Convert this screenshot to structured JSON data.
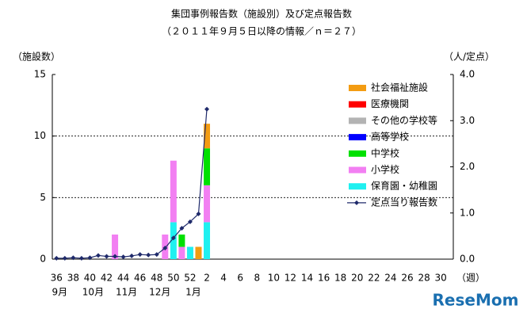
{
  "chart_data": {
    "type": "bar-line",
    "title": "集団事例報告数（施設別）及び定点報告数",
    "subtitle": "（２０１１年９月５日以降の情報／ｎ＝２７）",
    "y_label": "（施設数）",
    "y2_label": "（人/定点）",
    "x_label": "（週）",
    "watermark": "ReseMom",
    "categories": [
      "36",
      null,
      "38",
      null,
      "40",
      null,
      "42",
      null,
      "44",
      null,
      "46",
      null,
      "48",
      null,
      "50",
      null,
      "52",
      null,
      "2",
      null,
      "4",
      null,
      "6",
      null,
      "8",
      null,
      "10",
      null,
      "12",
      null,
      "14",
      null,
      "16",
      null,
      "18",
      null,
      "20",
      null,
      "22",
      null,
      "24",
      null,
      "26",
      null,
      "28",
      null,
      "30",
      null
    ],
    "month_labels": [
      {
        "label": "9月",
        "at": "36"
      },
      {
        "label": "10月",
        "at": "40"
      },
      {
        "label": "11月",
        "at": "44"
      },
      {
        "label": "12月",
        "at": "48"
      },
      {
        "label": "1月",
        "at": "52"
      }
    ],
    "series": [
      {
        "name": "社会福祉施設",
        "color": "#f39c12",
        "values": [
          0,
          0,
          0,
          0,
          0,
          0,
          0,
          0,
          0,
          0,
          0,
          0,
          0,
          0,
          0,
          0,
          0,
          1,
          2,
          0,
          0,
          0,
          0,
          0,
          0,
          0,
          0,
          0,
          0,
          0,
          0,
          0,
          0,
          0,
          0,
          0,
          0,
          0,
          0,
          0,
          0,
          0,
          0,
          0,
          0,
          0,
          0,
          0
        ]
      },
      {
        "name": "医療機関",
        "color": "#ff0000",
        "values": [
          0,
          0,
          0,
          0,
          0,
          0,
          0,
          0,
          0,
          0,
          0,
          0,
          0,
          0,
          0,
          0,
          0,
          0,
          0,
          0,
          0,
          0,
          0,
          0,
          0,
          0,
          0,
          0,
          0,
          0,
          0,
          0,
          0,
          0,
          0,
          0,
          0,
          0,
          0,
          0,
          0,
          0,
          0,
          0,
          0,
          0,
          0,
          0
        ]
      },
      {
        "name": "その他の学校等",
        "color": "#b3b3b3",
        "values": [
          0,
          0,
          0,
          0,
          0,
          0,
          0,
          0,
          0,
          0,
          0,
          0,
          0,
          0,
          0,
          0,
          0,
          0,
          0,
          0,
          0,
          0,
          0,
          0,
          0,
          0,
          0,
          0,
          0,
          0,
          0,
          0,
          0,
          0,
          0,
          0,
          0,
          0,
          0,
          0,
          0,
          0,
          0,
          0,
          0,
          0,
          0,
          0
        ]
      },
      {
        "name": "高等学校",
        "color": "#0000ff",
        "values": [
          0,
          0,
          0,
          0,
          0,
          0,
          0,
          0,
          0,
          0,
          0,
          0,
          0,
          0,
          0,
          0,
          0,
          0,
          0,
          0,
          0,
          0,
          0,
          0,
          0,
          0,
          0,
          0,
          0,
          0,
          0,
          0,
          0,
          0,
          0,
          0,
          0,
          0,
          0,
          0,
          0,
          0,
          0,
          0,
          0,
          0,
          0,
          0
        ]
      },
      {
        "name": "中学校",
        "color": "#00e000",
        "values": [
          0,
          0,
          0,
          0,
          0,
          0,
          0,
          0,
          0,
          0,
          0,
          0,
          0,
          0,
          0,
          1,
          0,
          0,
          3,
          0,
          0,
          0,
          0,
          0,
          0,
          0,
          0,
          0,
          0,
          0,
          0,
          0,
          0,
          0,
          0,
          0,
          0,
          0,
          0,
          0,
          0,
          0,
          0,
          0,
          0,
          0,
          0,
          0
        ]
      },
      {
        "name": "小学校",
        "color": "#f27ff2",
        "values": [
          0,
          0,
          0,
          0,
          0,
          0,
          0,
          2,
          0,
          0,
          0,
          0,
          0,
          2,
          5,
          1,
          0,
          0,
          3,
          0,
          0,
          0,
          0,
          0,
          0,
          0,
          0,
          0,
          0,
          0,
          0,
          0,
          0,
          0,
          0,
          0,
          0,
          0,
          0,
          0,
          0,
          0,
          0,
          0,
          0,
          0,
          0,
          0
        ]
      },
      {
        "name": "保育園・幼稚園",
        "color": "#1ff0f0",
        "values": [
          0,
          0,
          0,
          0,
          0,
          0,
          0,
          0,
          0,
          0,
          0,
          0,
          0,
          0,
          3,
          0,
          1,
          0,
          3,
          0,
          0,
          0,
          0,
          0,
          0,
          0,
          0,
          0,
          0,
          0,
          0,
          0,
          0,
          0,
          0,
          0,
          0,
          0,
          0,
          0,
          0,
          0,
          0,
          0,
          0,
          0,
          0,
          0
        ]
      },
      {
        "name": "定点当り報告数",
        "color": "#1f2a6b",
        "axis": "y2",
        "type": "line",
        "values": [
          0.02,
          0.02,
          0.03,
          0.02,
          0.03,
          0.08,
          0.06,
          0.06,
          0.05,
          0.07,
          0.1,
          0.09,
          0.1,
          0.24,
          0.46,
          0.67,
          0.81,
          0.98,
          3.25,
          null,
          null,
          null,
          null,
          null,
          null,
          null,
          null,
          null,
          null,
          null,
          null,
          null,
          null,
          null,
          null,
          null,
          null,
          null,
          null,
          null,
          null,
          null,
          null,
          null,
          null,
          null,
          null,
          null
        ]
      }
    ],
    "ylim": [
      0,
      15
    ],
    "yticks": [
      0,
      5,
      10,
      15
    ],
    "y2lim": [
      0,
      4
    ],
    "y2ticks": [
      {
        "value": 0,
        "label": "0.0"
      },
      {
        "value": 1,
        "label": "1.0"
      },
      {
        "value": 2,
        "label": "2.0"
      },
      {
        "value": 3,
        "label": "3.0"
      },
      {
        "value": 4,
        "label": "4.0"
      }
    ],
    "grid": true
  }
}
